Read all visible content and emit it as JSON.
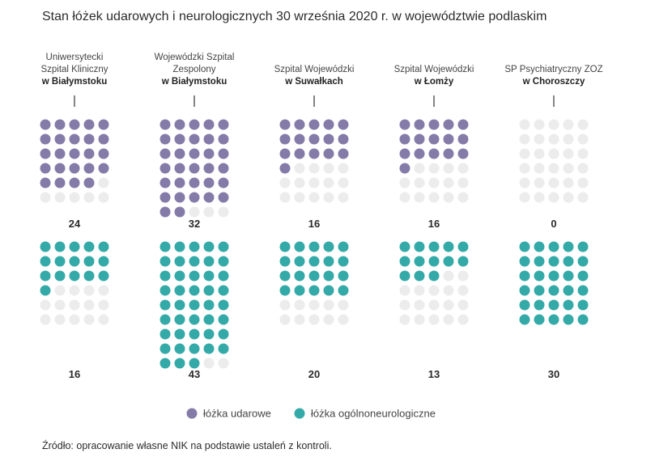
{
  "title": "Stan łóżek udarowych i neurologicznych 30 września 2020 r. w województwie podlaskim",
  "source": "Źródło: opracowanie własne NIK na podstawie ustaleń z kontroli.",
  "colors": {
    "stroke": "#857ba8",
    "neuro": "#34aaa8",
    "empty": "#ececec",
    "tick": "#333333"
  },
  "chart_data": {
    "type": "waffle",
    "title": "Stan łóżek udarowych i neurologicznych 30 września 2020 r. w województwie podlaskim",
    "grid": {
      "columns": 5,
      "rows": 6
    },
    "categories": [
      "Uniwersytecki Szpital Kliniczny w Białymstoku",
      "Wojewódzki Szpital Zespolony w Białymstoku",
      "Szpital Wojewódzki w Suwałkach",
      "Szpital Wojewódzki w Łomży",
      "SP Psychiatryczny ZOZ w Choroszczy"
    ],
    "hospitals": [
      {
        "lines": [
          "Uniwersytecki",
          "Szpital Kliniczny"
        ],
        "bold": "w Białymstoku",
        "stroke": 24,
        "neuro": 16
      },
      {
        "lines": [
          "Wojewódzki Szpital",
          "Zespolony"
        ],
        "bold": "w Białymstoku",
        "stroke": 32,
        "neuro": 43
      },
      {
        "lines": [
          "Szpital Wojewódzki"
        ],
        "bold": "w Suwałkach",
        "stroke": 16,
        "neuro": 20
      },
      {
        "lines": [
          "Szpital Wojewódzki"
        ],
        "bold": "w Łomży",
        "stroke": 16,
        "neuro": 13
      },
      {
        "lines": [
          "SP Psychiatryczny ZOZ"
        ],
        "bold": "w Choroszczy",
        "stroke": 0,
        "neuro": 30
      }
    ],
    "series": [
      {
        "name": "łóżka udarowe",
        "key": "stroke",
        "values": [
          24,
          32,
          16,
          16,
          0
        ]
      },
      {
        "name": "łóżka ogólnoneurologiczne",
        "key": "neuro",
        "values": [
          16,
          43,
          20,
          13,
          30
        ]
      }
    ],
    "legend": {
      "placement": "bottom",
      "items": [
        "łóżka udarowe",
        "łóżka ogólnoneurologiczne"
      ]
    }
  }
}
